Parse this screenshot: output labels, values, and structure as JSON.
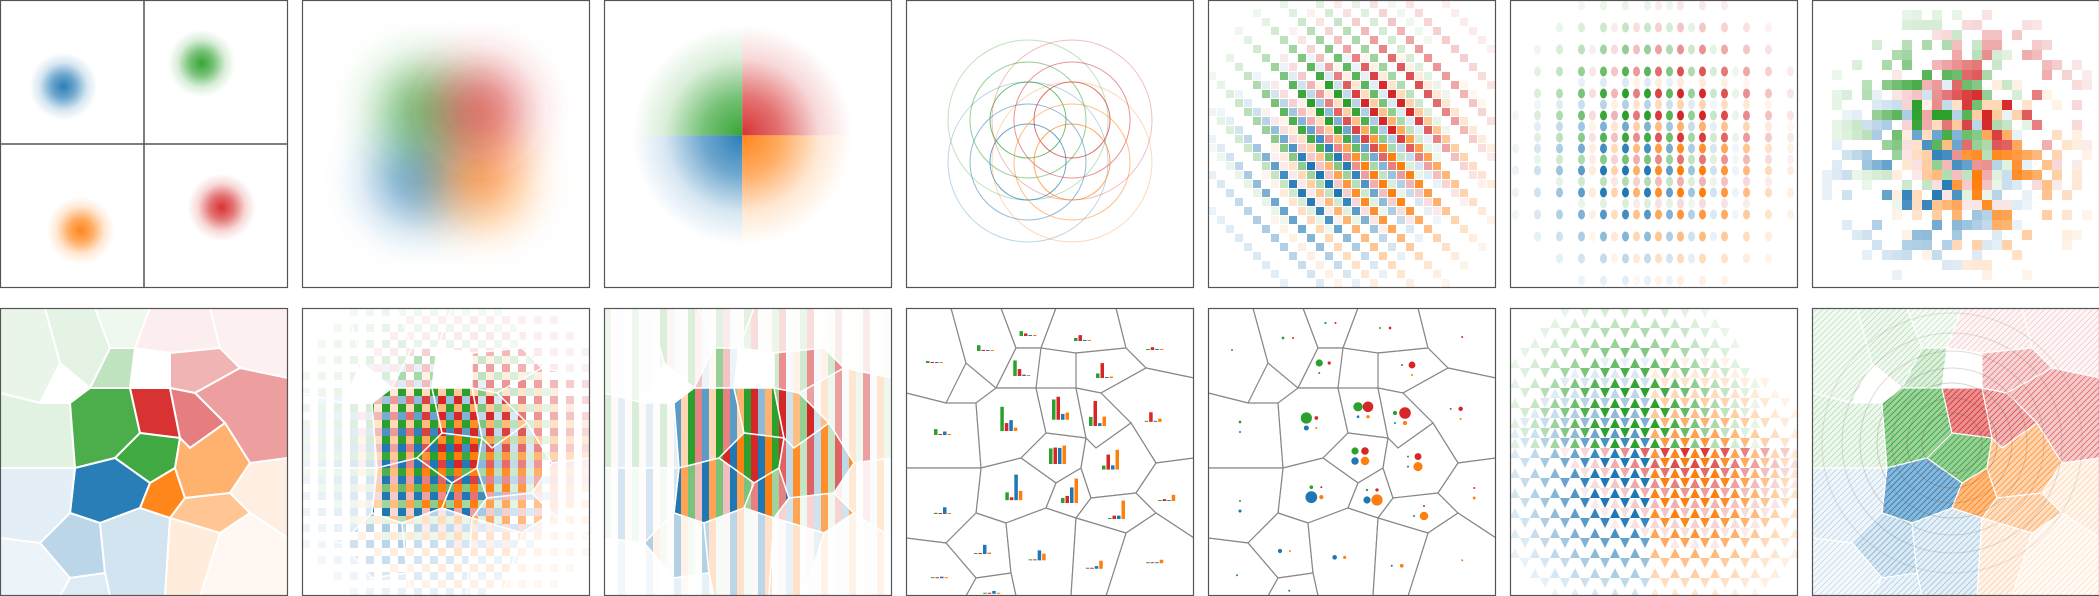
{
  "figure": {
    "colors": {
      "blue": "#1f77b4",
      "green": "#2ca02c",
      "red": "#d62728",
      "orange": "#ff7f0e",
      "panel_border": "#555555",
      "cell_border": "#888888"
    },
    "rows": [
      {
        "panels": [
          {
            "technique": "small-multiples",
            "title": ""
          },
          {
            "technique": "alpha-blending",
            "title": ""
          },
          {
            "technique": "hue-max",
            "title": ""
          },
          {
            "technique": "contours",
            "title": ""
          },
          {
            "technique": "diagonal-weaving",
            "title": ""
          },
          {
            "technique": "dot-mosaic",
            "title": ""
          },
          {
            "technique": "random-pixel-weaving",
            "title": ""
          }
        ]
      },
      {
        "panels": [
          {
            "technique": "voronoi-max",
            "title": ""
          },
          {
            "technique": "voronoi-weaving",
            "title": ""
          },
          {
            "technique": "voronoi-bars",
            "title": ""
          },
          {
            "technique": "voronoi-bar-glyphs",
            "title": ""
          },
          {
            "technique": "voronoi-dot-glyphs",
            "title": ""
          },
          {
            "technique": "zigzag-weaving",
            "title": ""
          },
          {
            "technique": "hatching-and-rings",
            "title": ""
          }
        ]
      }
    ]
  }
}
